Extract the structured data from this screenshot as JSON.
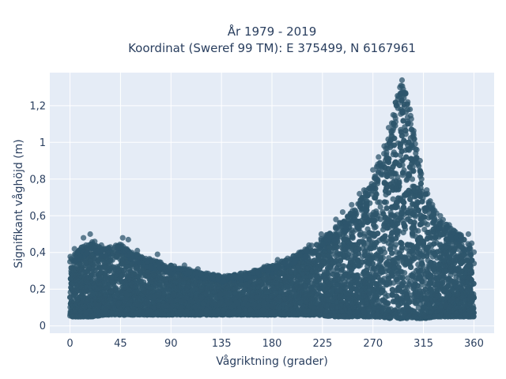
{
  "chart_data": {
    "type": "scatter",
    "title": [
      "År 1979 - 2019",
      "Koordinat (Sweref 99 TM): E 375499, N 6167961"
    ],
    "xlabel": "Vågriktning (grader)",
    "ylabel": "Signifikant våghöjd (m)",
    "xlim": [
      -18,
      378
    ],
    "ylim": [
      -0.04,
      1.38
    ],
    "xticks": [
      0,
      45,
      90,
      135,
      180,
      225,
      270,
      315,
      360
    ],
    "xtick_labels": [
      "0",
      "45",
      "90",
      "135",
      "180",
      "225",
      "270",
      "315",
      "360"
    ],
    "yticks": [
      0,
      0.2,
      0.4,
      0.6,
      0.8,
      1.0,
      1.2
    ],
    "ytick_labels": [
      "0",
      "0,2",
      "0,4",
      "0,6",
      "0,8",
      "1",
      "1,2"
    ],
    "grid": true,
    "legend": "none",
    "marker_color": "#2e566c",
    "background_color": "#e5ecf6",
    "envelope": {
      "direction": [
        0,
        10,
        20,
        30,
        45,
        55,
        70,
        90,
        110,
        135,
        160,
        180,
        200,
        220,
        235,
        250,
        265,
        275,
        285,
        292,
        296,
        300,
        306,
        315,
        325,
        340,
        350,
        360
      ],
      "min_height": [
        0.05,
        0.05,
        0.05,
        0.06,
        0.06,
        0.06,
        0.06,
        0.06,
        0.06,
        0.06,
        0.06,
        0.06,
        0.06,
        0.06,
        0.05,
        0.05,
        0.05,
        0.05,
        0.04,
        0.04,
        0.04,
        0.04,
        0.04,
        0.04,
        0.05,
        0.05,
        0.05,
        0.05
      ],
      "max_height": [
        0.38,
        0.42,
        0.45,
        0.42,
        0.44,
        0.4,
        0.36,
        0.33,
        0.3,
        0.27,
        0.29,
        0.33,
        0.38,
        0.45,
        0.52,
        0.62,
        0.74,
        0.88,
        1.05,
        1.28,
        1.32,
        1.25,
        1.05,
        0.78,
        0.62,
        0.52,
        0.48,
        0.4
      ]
    },
    "outliers": [
      [
        4,
        0.42
      ],
      [
        12,
        0.48
      ],
      [
        18,
        0.5
      ],
      [
        22,
        0.46
      ],
      [
        28,
        0.44
      ],
      [
        36,
        0.43
      ],
      [
        47,
        0.48
      ],
      [
        52,
        0.47
      ],
      [
        60,
        0.41
      ],
      [
        78,
        0.39
      ],
      [
        102,
        0.33
      ],
      [
        114,
        0.31
      ],
      [
        185,
        0.36
      ],
      [
        199,
        0.38
      ],
      [
        213,
        0.44
      ],
      [
        224,
        0.5
      ],
      [
        237,
        0.58
      ],
      [
        243,
        0.62
      ],
      [
        251,
        0.66
      ],
      [
        258,
        0.72
      ],
      [
        262,
        0.74
      ],
      [
        270,
        0.85
      ],
      [
        275,
        0.92
      ],
      [
        280,
        0.98
      ],
      [
        284,
        1.08
      ],
      [
        288,
        1.15
      ],
      [
        291,
        1.2
      ],
      [
        293,
        1.25
      ],
      [
        294,
        1.3
      ],
      [
        295,
        1.31
      ],
      [
        297,
        1.29
      ],
      [
        299,
        1.27
      ],
      [
        301,
        1.22
      ],
      [
        303,
        1.18
      ],
      [
        306,
        1.05
      ],
      [
        309,
        0.96
      ],
      [
        312,
        0.9
      ],
      [
        318,
        0.74
      ],
      [
        323,
        0.66
      ],
      [
        330,
        0.6
      ],
      [
        338,
        0.55
      ],
      [
        342,
        0.52
      ],
      [
        348,
        0.49
      ],
      [
        355,
        0.5
      ],
      [
        358,
        0.45
      ]
    ]
  }
}
